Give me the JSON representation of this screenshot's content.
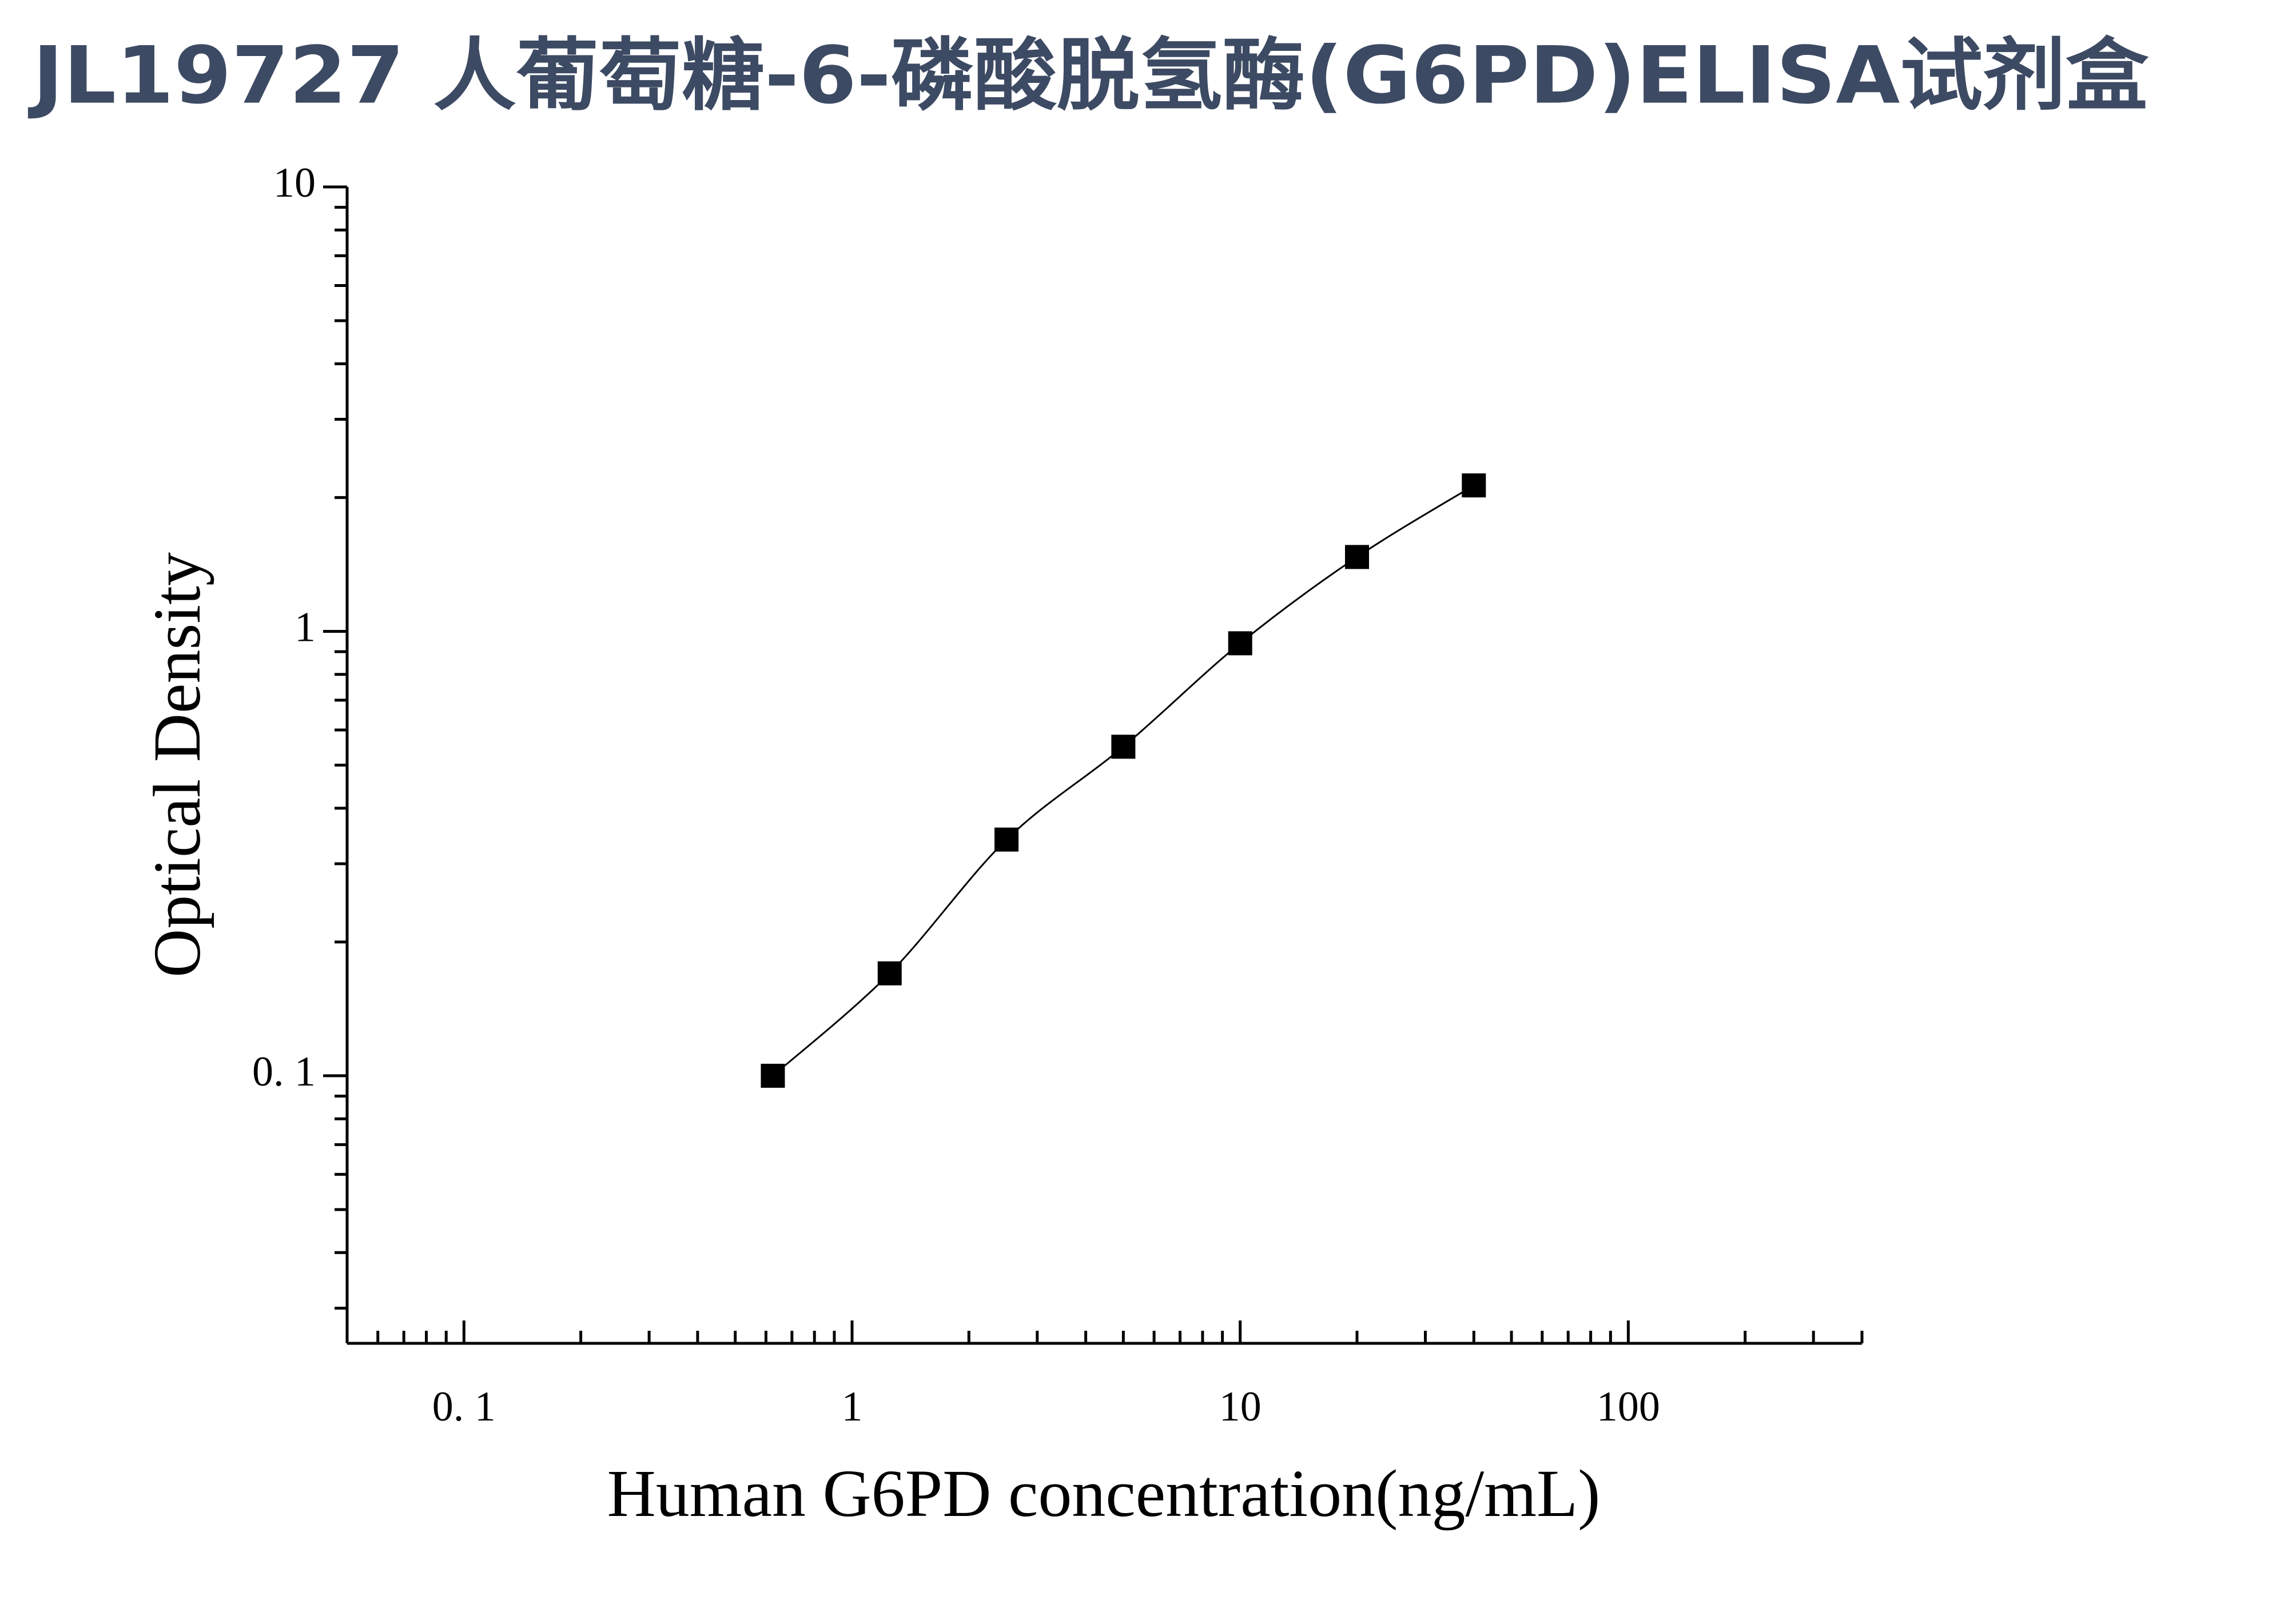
{
  "chart_data": {
    "type": "scatter-line",
    "title": "JL19727 人葡萄糖-6-磷酸脱氢酶(G6PD)ELISA试剂盒",
    "x_label": "Human G6PD concentration(ng/mL)",
    "y_label": "Optical Density",
    "xscale": "log",
    "yscale": "log",
    "xlim": [
      0.05,
      400
    ],
    "ylim": [
      0.025,
      10
    ],
    "xticks": [
      {
        "value": 0.1,
        "label": "0. 1"
      },
      1,
      10,
      100
    ],
    "yticks": [
      {
        "value": 0.1,
        "label": "0. 1"
      },
      1,
      10
    ],
    "xminorticks": [
      0.05,
      0.06,
      0.07,
      0.08,
      0.09,
      0.2,
      0.3,
      0.4,
      0.5,
      0.6,
      0.7,
      0.8,
      0.9,
      2,
      3,
      4,
      5,
      6,
      7,
      8,
      9,
      20,
      30,
      40,
      50,
      60,
      70,
      80,
      90,
      200,
      300,
      400
    ],
    "yminorticks": [
      0.03,
      0.04,
      0.05,
      0.06,
      0.07,
      0.08,
      0.09,
      0.2,
      0.3,
      0.4,
      0.5,
      0.6,
      0.7,
      0.8,
      0.9,
      2,
      3,
      4,
      5,
      6,
      7,
      8,
      9
    ],
    "grid": false,
    "series": [
      {
        "color": "#000000",
        "x": [
          0.625,
          1.25,
          2.5,
          5,
          10,
          20,
          40
        ],
        "values": [
          0.1,
          0.17,
          0.34,
          0.55,
          0.94,
          1.47,
          2.13
        ]
      }
    ]
  }
}
